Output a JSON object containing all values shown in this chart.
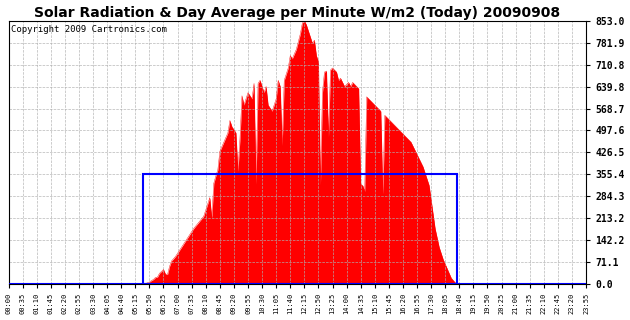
{
  "title": "Solar Radiation & Day Average per Minute W/m2 (Today) 20090908",
  "copyright": "Copyright 2009 Cartronics.com",
  "ymin": 0.0,
  "ymax": 853.0,
  "yticks": [
    0.0,
    71.1,
    142.2,
    213.2,
    284.3,
    355.4,
    426.5,
    497.6,
    568.7,
    639.8,
    710.8,
    781.9,
    853.0
  ],
  "day_avg": 355.4,
  "background_color": "#ffffff",
  "fill_color": "#ff0000",
  "line_color": "#0000ff",
  "grid_color": "#b0b0b0",
  "title_fontsize": 10,
  "copyright_fontsize": 6.5,
  "num_points": 288,
  "sunrise_idx": 67,
  "sunset_idx": 223,
  "tick_every": 7,
  "tick_minute_step": 35
}
